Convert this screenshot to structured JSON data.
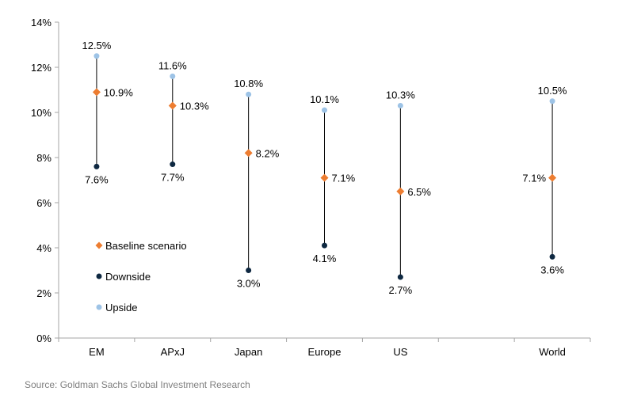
{
  "chart_data": {
    "type": "range-dot",
    "title": "",
    "xlabel": "",
    "ylabel": "",
    "ylim": [
      0,
      14
    ],
    "y_ticks": [
      "0%",
      "2%",
      "4%",
      "6%",
      "8%",
      "10%",
      "12%",
      "14%"
    ],
    "y_tick_values": [
      0,
      2,
      4,
      6,
      8,
      10,
      12,
      14
    ],
    "grid": false,
    "categories": [
      "EM",
      "APxJ",
      "Japan",
      "Europe",
      "US",
      "",
      "World"
    ],
    "series": [
      {
        "name": "Baseline scenario",
        "color": "#ed7d31",
        "marker": "diamond",
        "values": [
          10.9,
          10.3,
          8.2,
          7.1,
          6.5,
          null,
          7.1
        ],
        "labels": [
          "10.9%",
          "10.3%",
          "8.2%",
          "7.1%",
          "6.5%",
          null,
          "7.1%"
        ]
      },
      {
        "name": "Downside",
        "color": "#0e2841",
        "marker": "circle",
        "values": [
          7.6,
          7.7,
          3.0,
          4.1,
          2.7,
          null,
          3.6
        ],
        "labels": [
          "7.6%",
          "7.7%",
          "3.0%",
          "4.1%",
          "2.7%",
          null,
          "3.6%"
        ]
      },
      {
        "name": "Upside",
        "color": "#9dc3e6",
        "marker": "circle",
        "values": [
          12.5,
          11.6,
          10.8,
          10.1,
          10.3,
          null,
          10.5
        ],
        "labels": [
          "12.5%",
          "11.6%",
          "10.8%",
          "10.1%",
          "10.3%",
          null,
          "10.5%"
        ]
      }
    ],
    "legend_position": "left-middle"
  },
  "source": "Source: Goldman Sachs Global Investment Research"
}
